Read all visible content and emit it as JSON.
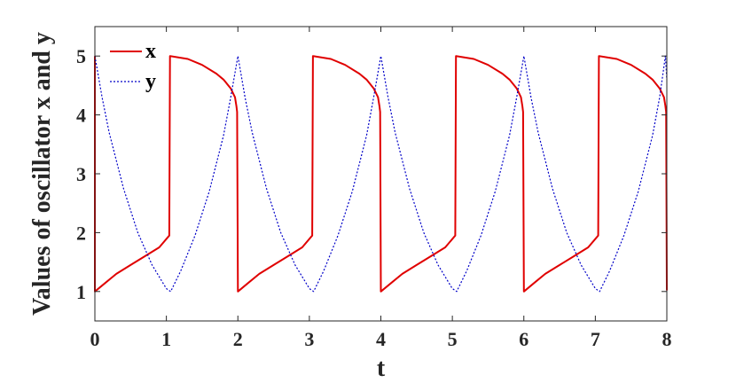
{
  "chart_data": {
    "type": "line",
    "title": "",
    "xlabel": "t",
    "ylabel": "Values of oscillator x and y",
    "xlim": [
      0,
      8
    ],
    "ylim": [
      0.5,
      5.5
    ],
    "xticks": [
      "0",
      "1",
      "2",
      "3",
      "4",
      "5",
      "6",
      "7",
      "8"
    ],
    "yticks": [
      "1",
      "2",
      "3",
      "4",
      "5"
    ],
    "grid": false,
    "legend": "top-left",
    "series": [
      {
        "name": "x",
        "color": "#e00000",
        "style": "solid",
        "x": [
          0,
          0,
          0.15,
          0.3,
          0.5,
          0.7,
          0.9,
          1.04,
          1.05,
          1.1,
          1.3,
          1.5,
          1.7,
          1.8,
          1.9,
          1.96,
          1.98,
          1.99,
          2.0,
          2.15,
          2.3,
          2.5,
          2.7,
          2.9,
          3.04,
          3.05,
          3.1,
          3.3,
          3.5,
          3.7,
          3.8,
          3.9,
          3.96,
          3.98,
          3.99,
          4.0,
          4.15,
          4.3,
          4.5,
          4.7,
          4.9,
          5.04,
          5.05,
          5.1,
          5.3,
          5.5,
          5.7,
          5.8,
          5.9,
          5.96,
          5.98,
          5.99,
          6.0,
          6.15,
          6.3,
          6.5,
          6.7,
          6.9,
          7.04,
          7.05,
          7.1,
          7.3,
          7.5,
          7.7,
          7.8,
          7.9,
          7.96,
          7.98,
          7.99,
          8.0
        ],
        "y": [
          5.0,
          1.0,
          1.15,
          1.3,
          1.45,
          1.6,
          1.75,
          1.95,
          5.0,
          4.99,
          4.95,
          4.85,
          4.7,
          4.6,
          4.45,
          4.3,
          4.15,
          4.05,
          1.0,
          1.15,
          1.3,
          1.45,
          1.6,
          1.75,
          1.95,
          5.0,
          4.99,
          4.95,
          4.85,
          4.7,
          4.6,
          4.45,
          4.3,
          4.15,
          4.05,
          1.0,
          1.15,
          1.3,
          1.45,
          1.6,
          1.75,
          1.95,
          5.0,
          4.99,
          4.95,
          4.85,
          4.7,
          4.6,
          4.45,
          4.3,
          4.15,
          4.05,
          1.0,
          1.15,
          1.3,
          1.45,
          1.6,
          1.75,
          1.95,
          5.0,
          4.99,
          4.95,
          4.85,
          4.7,
          4.6,
          4.45,
          4.3,
          4.15,
          4.05,
          1.02
        ]
      },
      {
        "name": "y",
        "color": "#0000c8",
        "style": "dotted",
        "x": [
          0,
          0.1,
          0.2,
          0.4,
          0.6,
          0.8,
          1.0,
          1.06,
          1.2,
          1.4,
          1.6,
          1.8,
          1.9,
          2.0,
          2.1,
          2.2,
          2.4,
          2.6,
          2.8,
          3.0,
          3.06,
          3.2,
          3.4,
          3.6,
          3.8,
          3.9,
          4.0,
          4.1,
          4.2,
          4.4,
          4.6,
          4.8,
          5.0,
          5.06,
          5.2,
          5.4,
          5.6,
          5.8,
          5.9,
          6.0,
          6.1,
          6.2,
          6.4,
          6.6,
          6.8,
          7.0,
          7.06,
          7.2,
          7.4,
          7.6,
          7.8,
          7.9,
          7.98,
          8.0
        ],
        "y": [
          5.0,
          4.3,
          3.7,
          2.75,
          2.0,
          1.45,
          1.05,
          1.0,
          1.35,
          1.95,
          2.7,
          3.65,
          4.3,
          5.0,
          4.3,
          3.7,
          2.75,
          2.0,
          1.45,
          1.05,
          1.0,
          1.35,
          1.95,
          2.7,
          3.65,
          4.3,
          5.0,
          4.3,
          3.7,
          2.75,
          2.0,
          1.45,
          1.05,
          1.0,
          1.35,
          1.95,
          2.7,
          3.65,
          4.3,
          5.0,
          4.3,
          3.7,
          2.75,
          2.0,
          1.45,
          1.05,
          1.0,
          1.35,
          1.95,
          2.7,
          3.65,
          4.3,
          5.0,
          4.6
        ]
      }
    ]
  }
}
